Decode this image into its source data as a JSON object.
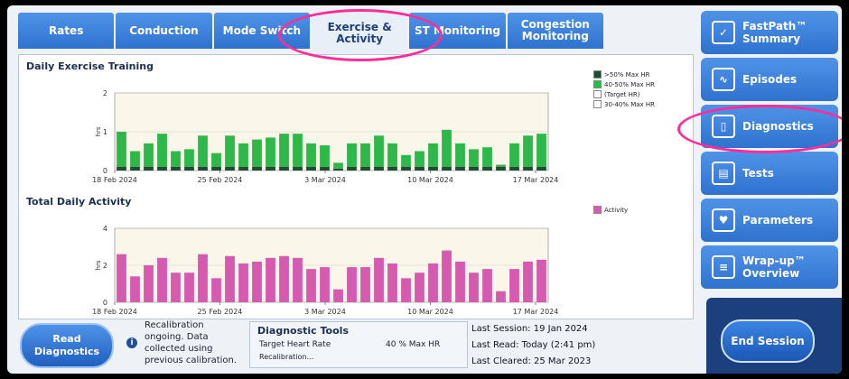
{
  "tabs": [
    {
      "label": "Rates",
      "active": false
    },
    {
      "label": "Conduction",
      "active": false
    },
    {
      "label": "Mode Switch",
      "active": false
    },
    {
      "label": "Exercise &\nActivity",
      "active": true
    },
    {
      "label": "ST Monitoring",
      "active": false
    },
    {
      "label": "Congestion\nMonitoring",
      "active": false
    }
  ],
  "sidebar": [
    {
      "label": "FastPath™\nSummary",
      "icon": "checkbox-icon",
      "glyph": "✓"
    },
    {
      "label": "Episodes",
      "icon": "ecg-icon",
      "glyph": "∿"
    },
    {
      "label": "Diagnostics",
      "icon": "device-icon",
      "glyph": "▯"
    },
    {
      "label": "Tests",
      "icon": "clipboard-icon",
      "glyph": "▤"
    },
    {
      "label": "Parameters",
      "icon": "heart-icon",
      "glyph": "♥"
    },
    {
      "label": "Wrap-up™\nOverview",
      "icon": "list-icon",
      "glyph": "≡"
    }
  ],
  "chart_data": [
    {
      "type": "bar",
      "title": "Daily Exercise Training",
      "ylabel": "hrs",
      "ylim": [
        0,
        2
      ],
      "yticks": [
        "0",
        "1",
        "2"
      ],
      "xtick_labels": [
        "18 Feb 2024",
        "25 Feb 2024",
        "3 Mar 2024",
        "10 Mar 2024",
        "17 Mar 2024"
      ],
      "legend": [
        {
          "name": ">50% Max HR",
          "color": "#1f4d33"
        },
        {
          "name": "40-50% Max HR",
          "color": "#2fb84a"
        },
        {
          "name": "(Target HR)",
          "color": "#ffffff"
        },
        {
          "name": "30-40% Max HR",
          "color": "#ffffff"
        }
      ],
      "series": [
        {
          "name": ">50% Max HR",
          "values": [
            0.9,
            0.4,
            0.6,
            0.85,
            0.4,
            0.45,
            0.8,
            0.35,
            0.8,
            0.6,
            0.7,
            0.75,
            0.85,
            0.85,
            0.6,
            0.55,
            0.15,
            0.6,
            0.6,
            0.8,
            0.6,
            0.3,
            0.4,
            0.6,
            0.95,
            0.6,
            0.45,
            0.5,
            0.05,
            0.6,
            0.8,
            0.85
          ]
        },
        {
          "name": "40-50% Max HR",
          "values": [
            0.1,
            0.1,
            0.1,
            0.1,
            0.1,
            0.1,
            0.1,
            0.1,
            0.1,
            0.1,
            0.1,
            0.1,
            0.1,
            0.1,
            0.1,
            0.1,
            0.05,
            0.1,
            0.1,
            0.1,
            0.1,
            0.1,
            0.1,
            0.1,
            0.1,
            0.1,
            0.1,
            0.1,
            0.1,
            0.1,
            0.1,
            0.1
          ]
        }
      ]
    },
    {
      "type": "bar",
      "title": "Total Daily Activity",
      "ylabel": "hrs",
      "ylim": [
        0,
        4
      ],
      "yticks": [
        "0",
        "2",
        "4"
      ],
      "xtick_labels": [
        "18 Feb 2024",
        "25 Feb 2024",
        "3 Mar 2024",
        "10 Mar 2024",
        "17 Mar 2024"
      ],
      "legend": [
        {
          "name": "Activity",
          "color": "#d55ab0"
        }
      ],
      "series": [
        {
          "name": "Activity",
          "values": [
            2.6,
            1.4,
            2.0,
            2.4,
            1.6,
            1.6,
            2.6,
            1.3,
            2.5,
            2.1,
            2.2,
            2.4,
            2.5,
            2.4,
            1.8,
            1.9,
            0.7,
            1.9,
            1.9,
            2.4,
            2.1,
            1.3,
            1.6,
            2.1,
            2.8,
            2.2,
            1.6,
            1.8,
            0.6,
            1.8,
            2.2,
            2.3
          ]
        }
      ]
    }
  ],
  "bottom": {
    "read_button": "Read\nDiagnostics",
    "recal_text": "Recalibration ongoing. Data collected using previous calibration.",
    "diag_title": "Diagnostic Tools",
    "target_label": "Target Heart Rate",
    "target_value": "40 % Max HR",
    "recal_status": "Recalibration...",
    "last_session": "Last Session: 19 Jan 2024",
    "last_read": "Last Read: Today (2:41 pm)",
    "last_cleared": "Last Cleared: 25 Mar 2023",
    "end_button": "End Session"
  }
}
